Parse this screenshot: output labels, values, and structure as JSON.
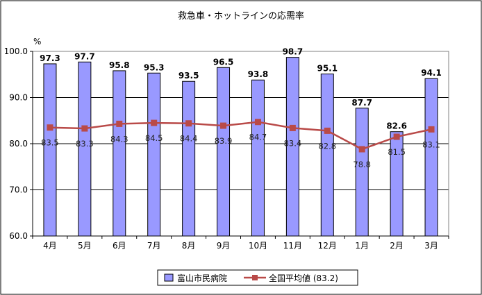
{
  "chart_data": {
    "type": "bar",
    "title": "救急車・ホットラインの応需率",
    "ylabel": "%",
    "xlabel": "",
    "ylim": [
      60,
      100
    ],
    "yticks": [
      "60.0",
      "70.0",
      "80.0",
      "90.0",
      "100.0"
    ],
    "categories": [
      "4月",
      "5月",
      "6月",
      "7月",
      "8月",
      "9月",
      "10月",
      "11月",
      "12月",
      "1月",
      "2月",
      "3月"
    ],
    "series": [
      {
        "name": "富山市民病院",
        "type": "bar",
        "color": "#9999ff",
        "values": [
          97.3,
          97.7,
          95.8,
          95.3,
          93.5,
          96.5,
          93.8,
          98.7,
          95.1,
          87.7,
          82.6,
          94.1
        ],
        "labels": [
          "97.3",
          "97.7",
          "95.8",
          "95.3",
          "93.5",
          "96.5",
          "93.8",
          "98.7",
          "95.1",
          "87.7",
          "82.6",
          "94.1"
        ]
      },
      {
        "name": "全国平均値 (83.2)",
        "type": "line",
        "color": "#b94a48",
        "values": [
          83.5,
          83.3,
          84.3,
          84.5,
          84.4,
          83.9,
          84.7,
          83.4,
          82.8,
          78.8,
          81.5,
          83.1
        ],
        "labels": [
          "83.5",
          "83.3",
          "84.3",
          "84.5",
          "84.4",
          "83.9",
          "84.7",
          "83.4",
          "82.8",
          "78.8",
          "81.5",
          "83.1"
        ]
      }
    ],
    "grid": true,
    "legend": "bottom"
  }
}
